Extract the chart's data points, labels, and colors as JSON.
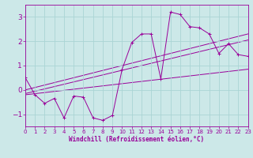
{
  "xlabel": "Windchill (Refroidissement éolien,°C)",
  "bg_color": "#cce8e8",
  "grid_color": "#aad4d4",
  "line_color": "#990099",
  "x_ticks": [
    0,
    1,
    2,
    3,
    4,
    5,
    6,
    7,
    8,
    9,
    10,
    11,
    12,
    13,
    14,
    15,
    16,
    17,
    18,
    19,
    20,
    21,
    22,
    23
  ],
  "y_ticks": [
    -1,
    0,
    1,
    2,
    3
  ],
  "xlim": [
    0,
    23
  ],
  "ylim": [
    -1.5,
    3.5
  ],
  "series1_x": [
    0,
    1,
    2,
    3,
    4,
    5,
    6,
    7,
    8,
    9,
    10,
    11,
    12,
    13,
    14,
    15,
    16,
    17,
    18,
    19,
    20,
    21,
    22,
    23
  ],
  "series1_y": [
    0.5,
    -0.2,
    -0.55,
    -0.35,
    -1.15,
    -0.25,
    -0.3,
    -1.15,
    -1.25,
    -1.05,
    0.85,
    1.95,
    2.3,
    2.3,
    0.45,
    3.2,
    3.1,
    2.6,
    2.55,
    2.3,
    1.5,
    1.9,
    1.45,
    1.38
  ],
  "line2_x": [
    0,
    23
  ],
  "line2_y": [
    -0.2,
    0.85
  ],
  "line3_x": [
    0,
    23
  ],
  "line3_y": [
    -0.15,
    2.05
  ],
  "line4_x": [
    0,
    23
  ],
  "line4_y": [
    0.0,
    2.3
  ]
}
